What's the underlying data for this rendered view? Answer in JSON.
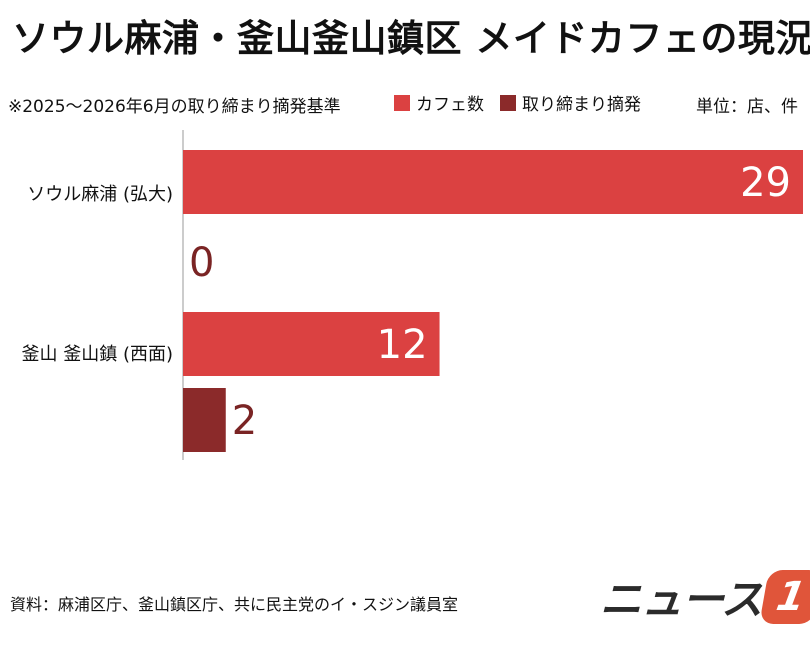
{
  "title": "ソウル麻浦・釜山釜山鎮区 メイドカフェの現況",
  "subtitle": "※2025〜2026年6月の取り締まり摘発基準",
  "unit": "単位：店、件",
  "source": "資料：麻浦区庁、釜山鎮区庁、共に民主党のイ・スジン議員室",
  "logo": {
    "text": "ニュース",
    "badge": "1"
  },
  "colors": {
    "cafes": "#db4141",
    "enforcement": "#8b2a2a"
  },
  "chart_data": {
    "type": "bar",
    "orientation": "horizontal",
    "categories": [
      "ソウル麻浦 (弘大)",
      "釜山 釜山鎮 (西面)"
    ],
    "series": [
      {
        "name": "カフェ数",
        "values": [
          29,
          12
        ]
      },
      {
        "name": "取り締まり摘発",
        "values": [
          0,
          2
        ]
      }
    ],
    "xlim": [
      0,
      29
    ],
    "grid": false,
    "legend": "top"
  }
}
